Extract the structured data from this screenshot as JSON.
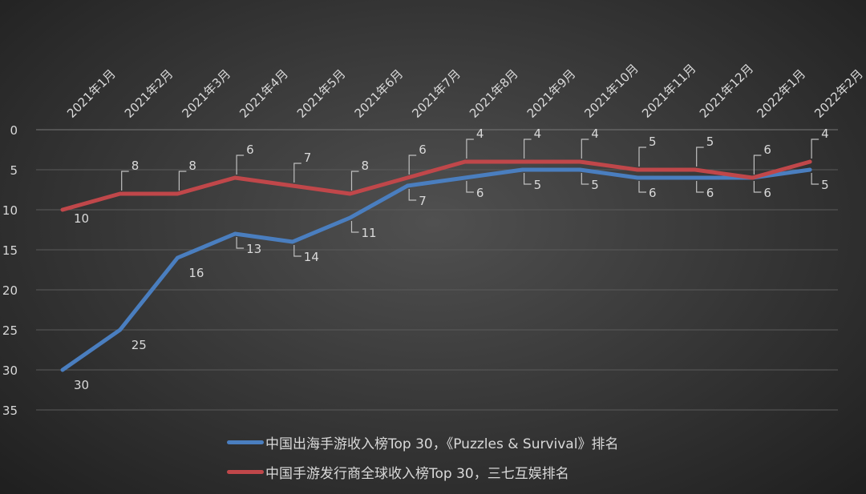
{
  "chart_data": {
    "type": "line",
    "categories": [
      "2021年1月",
      "2021年2月",
      "2021年3月",
      "2021年4月",
      "2021年5月",
      "2021年6月",
      "2021年7月",
      "2021年8月",
      "2021年9月",
      "2021年10月",
      "2021年11月",
      "2021年12月",
      "2022年1月",
      "2022年2月"
    ],
    "series": [
      {
        "name": "中国出海手游收入榜Top 30，《Puzzles & Survival》排名",
        "color": "#4a7ebf",
        "values": [
          30,
          25,
          16,
          13,
          14,
          11,
          7,
          6,
          5,
          5,
          6,
          6,
          6,
          5
        ]
      },
      {
        "name": "中国手游发行商全球收入榜Top 30，三七互娱排名",
        "color": "#c0474a",
        "values": [
          10,
          8,
          8,
          6,
          7,
          8,
          6,
          4,
          4,
          4,
          5,
          5,
          6,
          4
        ]
      }
    ],
    "ylim": [
      0,
      35
    ],
    "y_reversed": true,
    "yticks": [
      0,
      5,
      10,
      15,
      20,
      25,
      30,
      35
    ],
    "grid": true,
    "x_axis_position": "top",
    "legend": "bottom",
    "data_labels": true
  }
}
